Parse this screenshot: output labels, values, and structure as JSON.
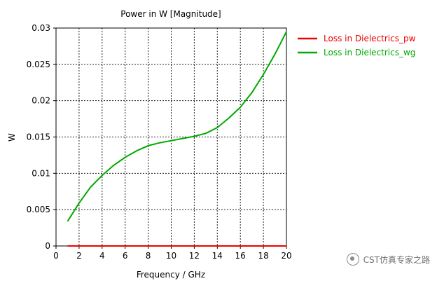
{
  "chart_data": {
    "type": "line",
    "title": "Power in W [Magnitude]",
    "xlabel": "Frequency / GHz",
    "ylabel": "W",
    "xlim": [
      0,
      20
    ],
    "ylim": [
      0,
      0.03
    ],
    "xticks": [
      "0",
      "2",
      "4",
      "6",
      "8",
      "10",
      "12",
      "14",
      "16",
      "18",
      "20"
    ],
    "yticks": [
      "0",
      "0.005",
      "0.01",
      "0.015",
      "0.02",
      "0.025",
      "0.03"
    ],
    "grid": true,
    "legend_position": "top-right, outside plot",
    "series": [
      {
        "name": "Loss in Dielectrics_pw",
        "color": "#ee0000",
        "x": [
          1,
          2,
          4,
          6,
          8,
          10,
          12,
          14,
          16,
          18,
          20
        ],
        "y": [
          0,
          0,
          0,
          0,
          0,
          0,
          0,
          0,
          0,
          0,
          0
        ]
      },
      {
        "name": "Loss in Dielectrics_wg",
        "color": "#00aa00",
        "x": [
          1,
          2,
          3,
          4,
          5,
          6,
          7,
          8,
          9,
          10,
          11,
          12,
          13,
          14,
          15,
          16,
          17,
          18,
          19,
          20
        ],
        "y": [
          0.0034,
          0.0059,
          0.0081,
          0.0097,
          0.0111,
          0.0122,
          0.0131,
          0.0138,
          0.0142,
          0.0145,
          0.0148,
          0.0151,
          0.0155,
          0.0163,
          0.0176,
          0.0191,
          0.0211,
          0.0236,
          0.0264,
          0.0295
        ]
      }
    ]
  },
  "watermark": {
    "text": "CST仿真专家之路"
  }
}
